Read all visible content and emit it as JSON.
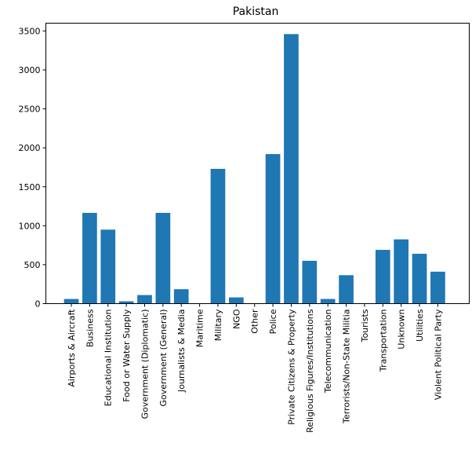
{
  "chart_data": {
    "type": "bar",
    "title": "Pakistan",
    "xlabel": "",
    "ylabel": "",
    "categories": [
      "Airports & Aircraft",
      "Business",
      "Educational Institution",
      "Food or Water Supply",
      "Government (Diplomatic)",
      "Government (General)",
      "Journalists & Media",
      "Maritime",
      "Military",
      "NGO",
      "Other",
      "Police",
      "Private Citizens & Property",
      "Religious Figures/Institutions",
      "Telecommunication",
      "Terrorists/Non-State Militia",
      "Tourists",
      "Transportation",
      "Unknown",
      "Utilities",
      "Violent Political Party"
    ],
    "values": [
      60,
      1165,
      950,
      30,
      110,
      1165,
      185,
      2,
      1730,
      80,
      3,
      1920,
      3460,
      550,
      60,
      365,
      3,
      690,
      825,
      640,
      410
    ],
    "ylim": [
      0,
      3600
    ],
    "yticks": [
      0,
      500,
      1000,
      1500,
      2000,
      2500,
      3000,
      3500
    ],
    "bar_color": "#1f77b4",
    "grid": false,
    "legend": "none"
  }
}
